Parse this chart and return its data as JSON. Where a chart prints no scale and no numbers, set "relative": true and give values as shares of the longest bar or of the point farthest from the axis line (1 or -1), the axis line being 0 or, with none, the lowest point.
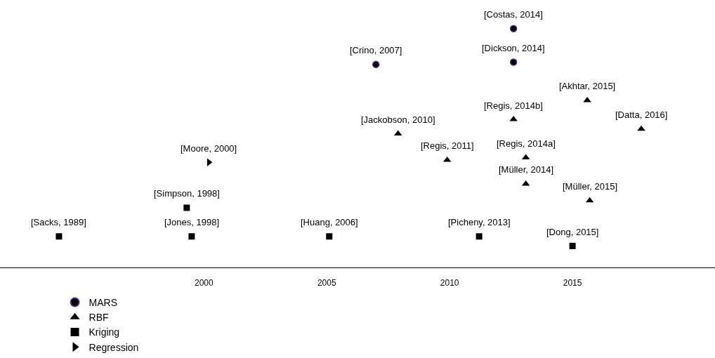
{
  "chart_data": {
    "type": "scatter",
    "relative": true,
    "xlim": [
      1991.7,
      2020.8
    ],
    "xticks": [
      2000,
      2005,
      2010,
      2015
    ],
    "legend": "bottom left",
    "series": [
      {
        "name": "MARS",
        "color": "#000000",
        "marker": "circle",
        "x": [
          2007.0,
          2012.6,
          2012.6
        ],
        "values": [
          0.85,
          1.0,
          0.86
        ]
      },
      {
        "name": "RBF",
        "color": "#000000",
        "marker": "triangle",
        "x": [
          2015.6,
          2012.6,
          2017.8,
          2007.9,
          2013.1,
          2009.9,
          2013.1,
          2015.7
        ],
        "values": [
          0.7,
          0.62,
          0.58,
          0.56,
          0.46,
          0.45,
          0.35,
          0.28
        ]
      },
      {
        "name": "Kriging",
        "color": "#000000",
        "marker": "square",
        "x": [
          1999.3,
          1994.1,
          1999.5,
          2005.1,
          2011.2,
          2015.0
        ],
        "values": [
          0.25,
          0.13,
          0.13,
          0.13,
          0.13,
          0.09
        ]
      },
      {
        "name": "Regression",
        "color": "#000000",
        "x": [
          2000.2
        ],
        "values": [
          0.44
        ]
      }
    ],
    "annotations": [
      {
        "text": "[Crino, 2007]",
        "x": 2007.0,
        "y": 0.85
      },
      {
        "text": "[Costas, 2014]",
        "x": 2012.6,
        "y": 1.0
      },
      {
        "text": "[Dickson, 2014]",
        "x": 2012.6,
        "y": 0.86
      },
      {
        "text": "[Akhtar, 2015]",
        "x": 2015.6,
        "y": 0.7
      },
      {
        "text": "[Regis, 2014b]",
        "x": 2012.6,
        "y": 0.62
      },
      {
        "text": "[Datta, 2016]",
        "x": 2017.8,
        "y": 0.58
      },
      {
        "text": "[Jackobson, 2010]",
        "x": 2007.9,
        "y": 0.56
      },
      {
        "text": "[Regis, 2014a]",
        "x": 2013.1,
        "y": 0.46
      },
      {
        "text": "[Regis, 2011]",
        "x": 2009.9,
        "y": 0.45
      },
      {
        "text": "[Müller, 2014]",
        "x": 2013.1,
        "y": 0.35
      },
      {
        "text": "[Müller, 2015]",
        "x": 2015.7,
        "y": 0.28
      },
      {
        "text": "[Simpson, 1998]",
        "x": 1999.3,
        "y": 0.25
      },
      {
        "text": "[Sacks, 1989]",
        "x": 1994.1,
        "y": 0.13
      },
      {
        "text": "[Jones, 1998]",
        "x": 1999.5,
        "y": 0.13
      },
      {
        "text": "[Huang, 2006]",
        "x": 2005.1,
        "y": 0.13
      },
      {
        "text": "[Picheny, 2013]",
        "x": 2011.2,
        "y": 0.13
      },
      {
        "text": "[Dong, 2015]",
        "x": 2015.0,
        "y": 0.09
      },
      {
        "text": "[Moore, 2000]",
        "x": 2000.2,
        "y": 0.44
      }
    ]
  }
}
